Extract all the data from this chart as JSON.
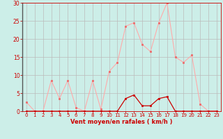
{
  "x": [
    0,
    1,
    2,
    3,
    4,
    5,
    6,
    7,
    8,
    9,
    10,
    11,
    12,
    13,
    14,
    15,
    16,
    17,
    18,
    19,
    20,
    21,
    22,
    23
  ],
  "rafales": [
    2.5,
    0,
    0,
    8.5,
    3.5,
    8.5,
    1,
    0,
    8.5,
    0.5,
    11,
    13.5,
    23.5,
    24.5,
    18.5,
    16.5,
    24.5,
    30,
    15,
    13.5,
    15.5,
    2,
    0,
    0
  ],
  "moyen": [
    0,
    0,
    0,
    0,
    0,
    0,
    0,
    0,
    0,
    0,
    0,
    0,
    3.5,
    4.5,
    1.5,
    1.5,
    3.5,
    4.0,
    0,
    0,
    0,
    0,
    0,
    0
  ],
  "line_color_rafales": "#ffaaaa",
  "line_color_moyen": "#cc0000",
  "marker_color_rafales": "#ee6666",
  "marker_color_moyen": "#cc0000",
  "bg_color": "#cceee8",
  "grid_color": "#bbbbbb",
  "axis_color": "#cc0000",
  "xlabel": "Vent moyen/en rafales ( km/h )",
  "xlim": [
    -0.5,
    23.5
  ],
  "ylim": [
    0,
    30
  ],
  "yticks": [
    0,
    5,
    10,
    15,
    20,
    25,
    30
  ],
  "xticks": [
    0,
    1,
    2,
    3,
    4,
    5,
    6,
    7,
    8,
    9,
    10,
    11,
    12,
    13,
    14,
    15,
    16,
    17,
    18,
    19,
    20,
    21,
    22,
    23
  ]
}
